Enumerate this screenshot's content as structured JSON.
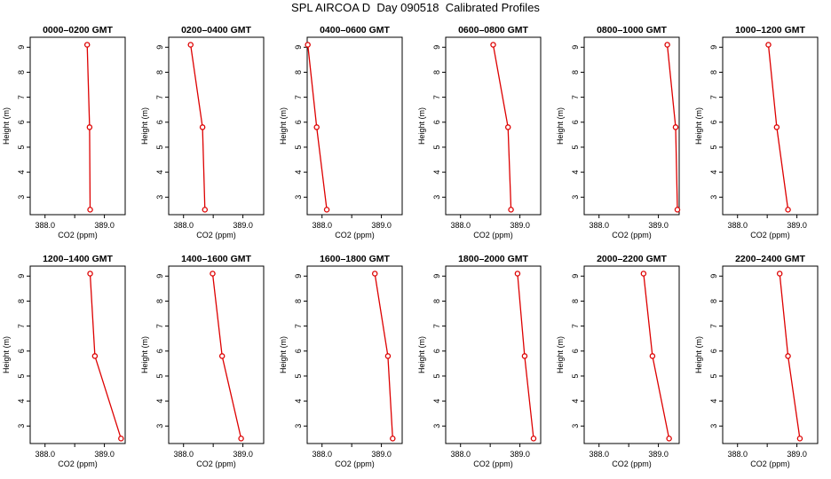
{
  "title": "SPL AIRCOA D  Day 090518  Calibrated Profiles",
  "colors": {
    "series": "#dd0000",
    "axis": "#000000"
  },
  "chart_data": [
    {
      "type": "line",
      "title": "0000–0200 GMT",
      "xlabel": "CO2 (ppm)",
      "ylabel": "Height (m)",
      "xlim": [
        387.75,
        389.35
      ],
      "ylim": [
        2.3,
        9.4
      ],
      "x_ticks": [
        "388.0",
        "389.0"
      ],
      "y_ticks": [
        "3",
        "4",
        "5",
        "6",
        "7",
        "8",
        "9"
      ],
      "x": [
        388.71,
        388.75,
        388.76
      ],
      "y": [
        9.1,
        5.8,
        2.5
      ]
    },
    {
      "type": "line",
      "title": "0200–0400 GMT",
      "xlabel": "CO2 (ppm)",
      "ylabel": "Height (m)",
      "xlim": [
        387.75,
        389.35
      ],
      "ylim": [
        2.3,
        9.4
      ],
      "x_ticks": [
        "388.0",
        "389.0"
      ],
      "y_ticks": [
        "3",
        "4",
        "5",
        "6",
        "7",
        "8",
        "9"
      ],
      "x": [
        388.12,
        388.32,
        388.36
      ],
      "y": [
        9.1,
        5.8,
        2.5
      ]
    },
    {
      "type": "line",
      "title": "0400–0600 GMT",
      "xlabel": "CO2 (ppm)",
      "ylabel": "Height (m)",
      "xlim": [
        387.75,
        389.35
      ],
      "ylim": [
        2.3,
        9.4
      ],
      "x_ticks": [
        "388.0",
        "389.0"
      ],
      "y_ticks": [
        "3",
        "4",
        "5",
        "6",
        "7",
        "8",
        "9"
      ],
      "x": [
        387.76,
        387.91,
        388.08
      ],
      "y": [
        9.1,
        5.8,
        2.5
      ]
    },
    {
      "type": "line",
      "title": "0600–0800 GMT",
      "xlabel": "CO2 (ppm)",
      "ylabel": "Height (m)",
      "xlim": [
        387.75,
        389.35
      ],
      "ylim": [
        2.3,
        9.4
      ],
      "x_ticks": [
        "388.0",
        "389.0"
      ],
      "y_ticks": [
        "3",
        "4",
        "5",
        "6",
        "7",
        "8",
        "9"
      ],
      "x": [
        388.55,
        388.8,
        388.85
      ],
      "y": [
        9.1,
        5.8,
        2.5
      ]
    },
    {
      "type": "line",
      "title": "0800–1000 GMT",
      "xlabel": "CO2 (ppm)",
      "ylabel": "Height (m)",
      "xlim": [
        387.75,
        389.35
      ],
      "ylim": [
        2.3,
        9.4
      ],
      "x_ticks": [
        "388.0",
        "389.0"
      ],
      "y_ticks": [
        "3",
        "4",
        "5",
        "6",
        "7",
        "8",
        "9"
      ],
      "x": [
        389.15,
        389.29,
        389.32
      ],
      "y": [
        9.1,
        5.8,
        2.5
      ]
    },
    {
      "type": "line",
      "title": "1000–1200 GMT",
      "xlabel": "CO2 (ppm)",
      "ylabel": "Height (m)",
      "xlim": [
        387.75,
        389.35
      ],
      "ylim": [
        2.3,
        9.4
      ],
      "x_ticks": [
        "388.0",
        "389.0"
      ],
      "y_ticks": [
        "3",
        "4",
        "5",
        "6",
        "7",
        "8",
        "9"
      ],
      "x": [
        388.52,
        388.66,
        388.85
      ],
      "y": [
        9.1,
        5.8,
        2.5
      ]
    },
    {
      "type": "line",
      "title": "1200–1400 GMT",
      "xlabel": "CO2 (ppm)",
      "ylabel": "Height (m)",
      "xlim": [
        387.75,
        389.35
      ],
      "ylim": [
        2.3,
        9.4
      ],
      "x_ticks": [
        "388.0",
        "389.0"
      ],
      "y_ticks": [
        "3",
        "4",
        "5",
        "6",
        "7",
        "8",
        "9"
      ],
      "x": [
        388.76,
        388.84,
        389.28
      ],
      "y": [
        9.1,
        5.8,
        2.5
      ]
    },
    {
      "type": "line",
      "title": "1400–1600 GMT",
      "xlabel": "CO2 (ppm)",
      "ylabel": "Height (m)",
      "xlim": [
        387.75,
        389.35
      ],
      "ylim": [
        2.3,
        9.4
      ],
      "x_ticks": [
        "388.0",
        "389.0"
      ],
      "y_ticks": [
        "3",
        "4",
        "5",
        "6",
        "7",
        "8",
        "9"
      ],
      "x": [
        388.49,
        388.65,
        388.97
      ],
      "y": [
        9.1,
        5.8,
        2.5
      ]
    },
    {
      "type": "line",
      "title": "1600–1800 GMT",
      "xlabel": "CO2 (ppm)",
      "ylabel": "Height (m)",
      "xlim": [
        387.75,
        389.35
      ],
      "ylim": [
        2.3,
        9.4
      ],
      "x_ticks": [
        "388.0",
        "389.0"
      ],
      "y_ticks": [
        "3",
        "4",
        "5",
        "6",
        "7",
        "8",
        "9"
      ],
      "x": [
        388.89,
        389.11,
        389.19
      ],
      "y": [
        9.1,
        5.8,
        2.5
      ]
    },
    {
      "type": "line",
      "title": "1800–2000 GMT",
      "xlabel": "CO2 (ppm)",
      "ylabel": "Height (m)",
      "xlim": [
        387.75,
        389.35
      ],
      "ylim": [
        2.3,
        9.4
      ],
      "x_ticks": [
        "388.0",
        "389.0"
      ],
      "y_ticks": [
        "3",
        "4",
        "5",
        "6",
        "7",
        "8",
        "9"
      ],
      "x": [
        388.96,
        389.08,
        389.23
      ],
      "y": [
        9.1,
        5.8,
        2.5
      ]
    },
    {
      "type": "line",
      "title": "2000–2200 GMT",
      "xlabel": "CO2 (ppm)",
      "ylabel": "Height (m)",
      "xlim": [
        387.75,
        389.35
      ],
      "ylim": [
        2.3,
        9.4
      ],
      "x_ticks": [
        "388.0",
        "389.0"
      ],
      "y_ticks": [
        "3",
        "4",
        "5",
        "6",
        "7",
        "8",
        "9"
      ],
      "x": [
        388.75,
        388.9,
        389.18
      ],
      "y": [
        9.1,
        5.8,
        2.5
      ]
    },
    {
      "type": "line",
      "title": "2200–2400 GMT",
      "xlabel": "CO2 (ppm)",
      "ylabel": "Height (m)",
      "xlim": [
        387.75,
        389.35
      ],
      "ylim": [
        2.3,
        9.4
      ],
      "x_ticks": [
        "388.0",
        "389.0"
      ],
      "y_ticks": [
        "3",
        "4",
        "5",
        "6",
        "7",
        "8",
        "9"
      ],
      "x": [
        388.71,
        388.85,
        389.05
      ],
      "y": [
        9.1,
        5.8,
        2.5
      ]
    }
  ]
}
